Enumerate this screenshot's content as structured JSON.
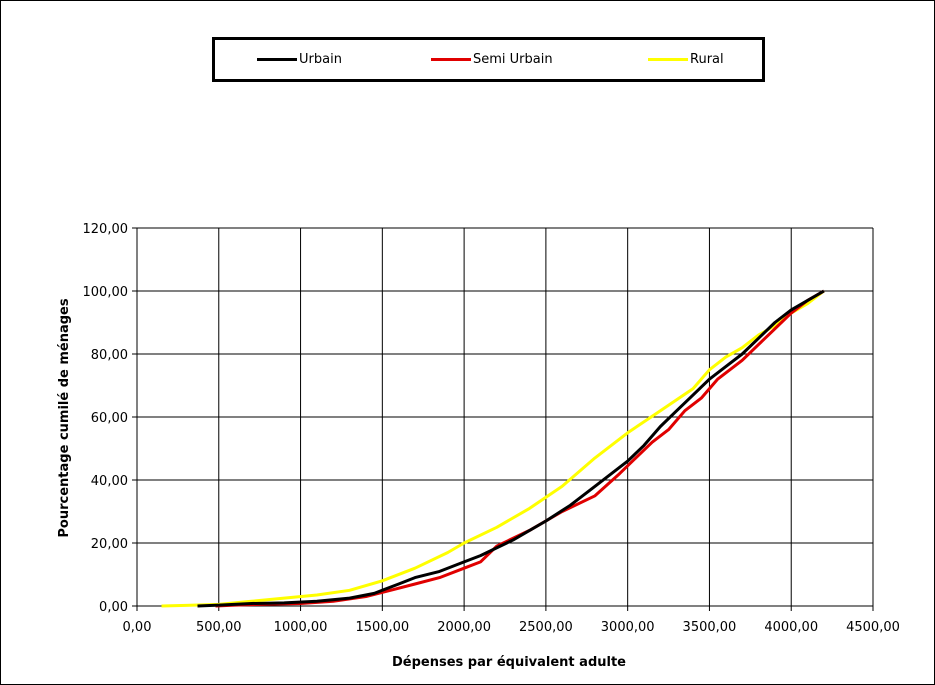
{
  "chart_data": {
    "type": "line",
    "title": "",
    "xlabel": "Dépenses par équivalent adulte",
    "ylabel": "Pourcentage cumilé de ménages",
    "xlim": [
      0,
      4500
    ],
    "ylim": [
      0,
      120
    ],
    "x_ticks": [
      0,
      500,
      1000,
      1500,
      2000,
      2500,
      3000,
      3500,
      4000,
      4500
    ],
    "x_tick_labels": [
      "0,00",
      "500,00",
      "1000,00",
      "1500,00",
      "2000,00",
      "2500,00",
      "3000,00",
      "3500,00",
      "4000,00",
      "4500,00"
    ],
    "y_ticks": [
      0,
      20,
      40,
      60,
      80,
      100,
      120
    ],
    "y_tick_labels": [
      "0,00",
      "20,00",
      "40,00",
      "60,00",
      "80,00",
      "100,00",
      "120,00"
    ],
    "grid": true,
    "legend_position": "top",
    "series": [
      {
        "name": "Urbain",
        "color": "#000000",
        "points": [
          [
            370,
            0
          ],
          [
            500,
            0.3
          ],
          [
            700,
            0.8
          ],
          [
            900,
            1
          ],
          [
            1100,
            1.5
          ],
          [
            1300,
            2.5
          ],
          [
            1450,
            4
          ],
          [
            1600,
            7
          ],
          [
            1700,
            9
          ],
          [
            1850,
            11
          ],
          [
            2000,
            14
          ],
          [
            2100,
            16
          ],
          [
            2300,
            21
          ],
          [
            2500,
            27
          ],
          [
            2650,
            32
          ],
          [
            2800,
            38
          ],
          [
            3000,
            46
          ],
          [
            3100,
            51
          ],
          [
            3200,
            57
          ],
          [
            3300,
            62
          ],
          [
            3400,
            67
          ],
          [
            3500,
            72
          ],
          [
            3600,
            76
          ],
          [
            3700,
            80
          ],
          [
            3800,
            85
          ],
          [
            3900,
            90
          ],
          [
            4000,
            94
          ],
          [
            4100,
            97
          ],
          [
            4200,
            100
          ]
        ]
      },
      {
        "name": "Semi Urbain",
        "color": "#e00000",
        "points": [
          [
            480,
            0
          ],
          [
            600,
            0.3
          ],
          [
            800,
            0.6
          ],
          [
            1000,
            0.8
          ],
          [
            1200,
            1.5
          ],
          [
            1400,
            3
          ],
          [
            1550,
            5
          ],
          [
            1700,
            7
          ],
          [
            1850,
            9
          ],
          [
            2000,
            12
          ],
          [
            2100,
            14
          ],
          [
            2200,
            19
          ],
          [
            2400,
            24
          ],
          [
            2600,
            30
          ],
          [
            2800,
            35
          ],
          [
            2950,
            42
          ],
          [
            3050,
            47
          ],
          [
            3150,
            52
          ],
          [
            3250,
            56
          ],
          [
            3350,
            62
          ],
          [
            3450,
            66
          ],
          [
            3550,
            72
          ],
          [
            3700,
            78
          ],
          [
            3800,
            83
          ],
          [
            3900,
            88
          ],
          [
            4000,
            93
          ],
          [
            4100,
            97
          ],
          [
            4200,
            100
          ]
        ]
      },
      {
        "name": "Rural",
        "color": "#ffff00",
        "points": [
          [
            150,
            0
          ],
          [
            300,
            0.2
          ],
          [
            500,
            0.5
          ],
          [
            700,
            1.5
          ],
          [
            900,
            2.5
          ],
          [
            1100,
            3.5
          ],
          [
            1300,
            5
          ],
          [
            1500,
            8
          ],
          [
            1700,
            12
          ],
          [
            1900,
            17
          ],
          [
            2000,
            20
          ],
          [
            2200,
            25
          ],
          [
            2400,
            31
          ],
          [
            2600,
            38
          ],
          [
            2800,
            47
          ],
          [
            3000,
            55
          ],
          [
            3200,
            62
          ],
          [
            3400,
            69
          ],
          [
            3500,
            75
          ],
          [
            3600,
            79
          ],
          [
            3700,
            82
          ],
          [
            3800,
            86
          ],
          [
            3900,
            89
          ],
          [
            4000,
            93
          ],
          [
            4100,
            96
          ],
          [
            4200,
            100
          ]
        ]
      }
    ]
  }
}
